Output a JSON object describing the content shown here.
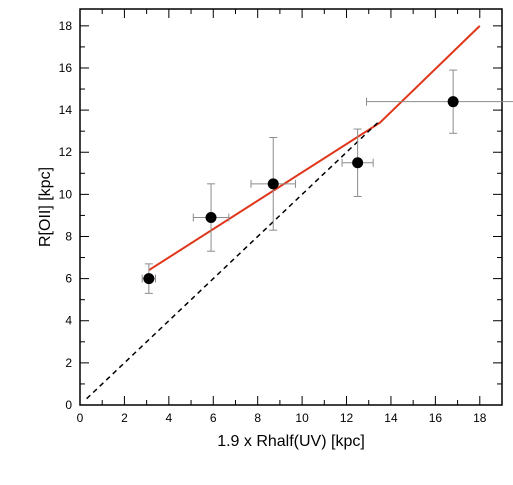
{
  "chart_data": {
    "type": "scatter",
    "title": "",
    "xlabel": "1.9 x Rhalf(UV) [kpc]",
    "ylabel": "R[OII] [kpc]",
    "xlim": [
      0,
      19
    ],
    "ylim": [
      0,
      18.8
    ],
    "xticks": [
      0,
      2,
      4,
      6,
      8,
      10,
      12,
      14,
      16,
      18
    ],
    "yticks": [
      0,
      2,
      4,
      6,
      8,
      10,
      12,
      14,
      16,
      18
    ],
    "grid": false,
    "points": [
      {
        "x": 3.1,
        "y": 6.0,
        "xerr": 0.3,
        "yerr_low": 0.7,
        "yerr_high": 0.7
      },
      {
        "x": 5.9,
        "y": 8.9,
        "xerr": 0.8,
        "yerr_low": 1.6,
        "yerr_high": 1.6
      },
      {
        "x": 8.7,
        "y": 10.5,
        "xerr": 1.0,
        "yerr_low": 2.2,
        "yerr_high": 2.2
      },
      {
        "x": 12.5,
        "y": 11.5,
        "xerr": 0.7,
        "yerr_low": 1.6,
        "yerr_high": 1.6
      },
      {
        "x": 16.8,
        "y": 14.4,
        "xerr": 3.9,
        "yerr_low": 1.5,
        "yerr_high": 1.5
      }
    ],
    "lines": [
      {
        "style": "solid",
        "color": "#e0361a",
        "x": [
          3.1,
          13.5,
          18.0
        ],
        "y": [
          6.4,
          13.4,
          18.0
        ]
      },
      {
        "style": "dashed",
        "color": "#000000",
        "x": [
          0.3,
          13.5
        ],
        "y": [
          0.3,
          13.5
        ]
      }
    ],
    "colors": {
      "marker": "#000000",
      "errorbar": "#8c8c8c",
      "fit": "#e0361a",
      "reference": "#000000"
    }
  }
}
